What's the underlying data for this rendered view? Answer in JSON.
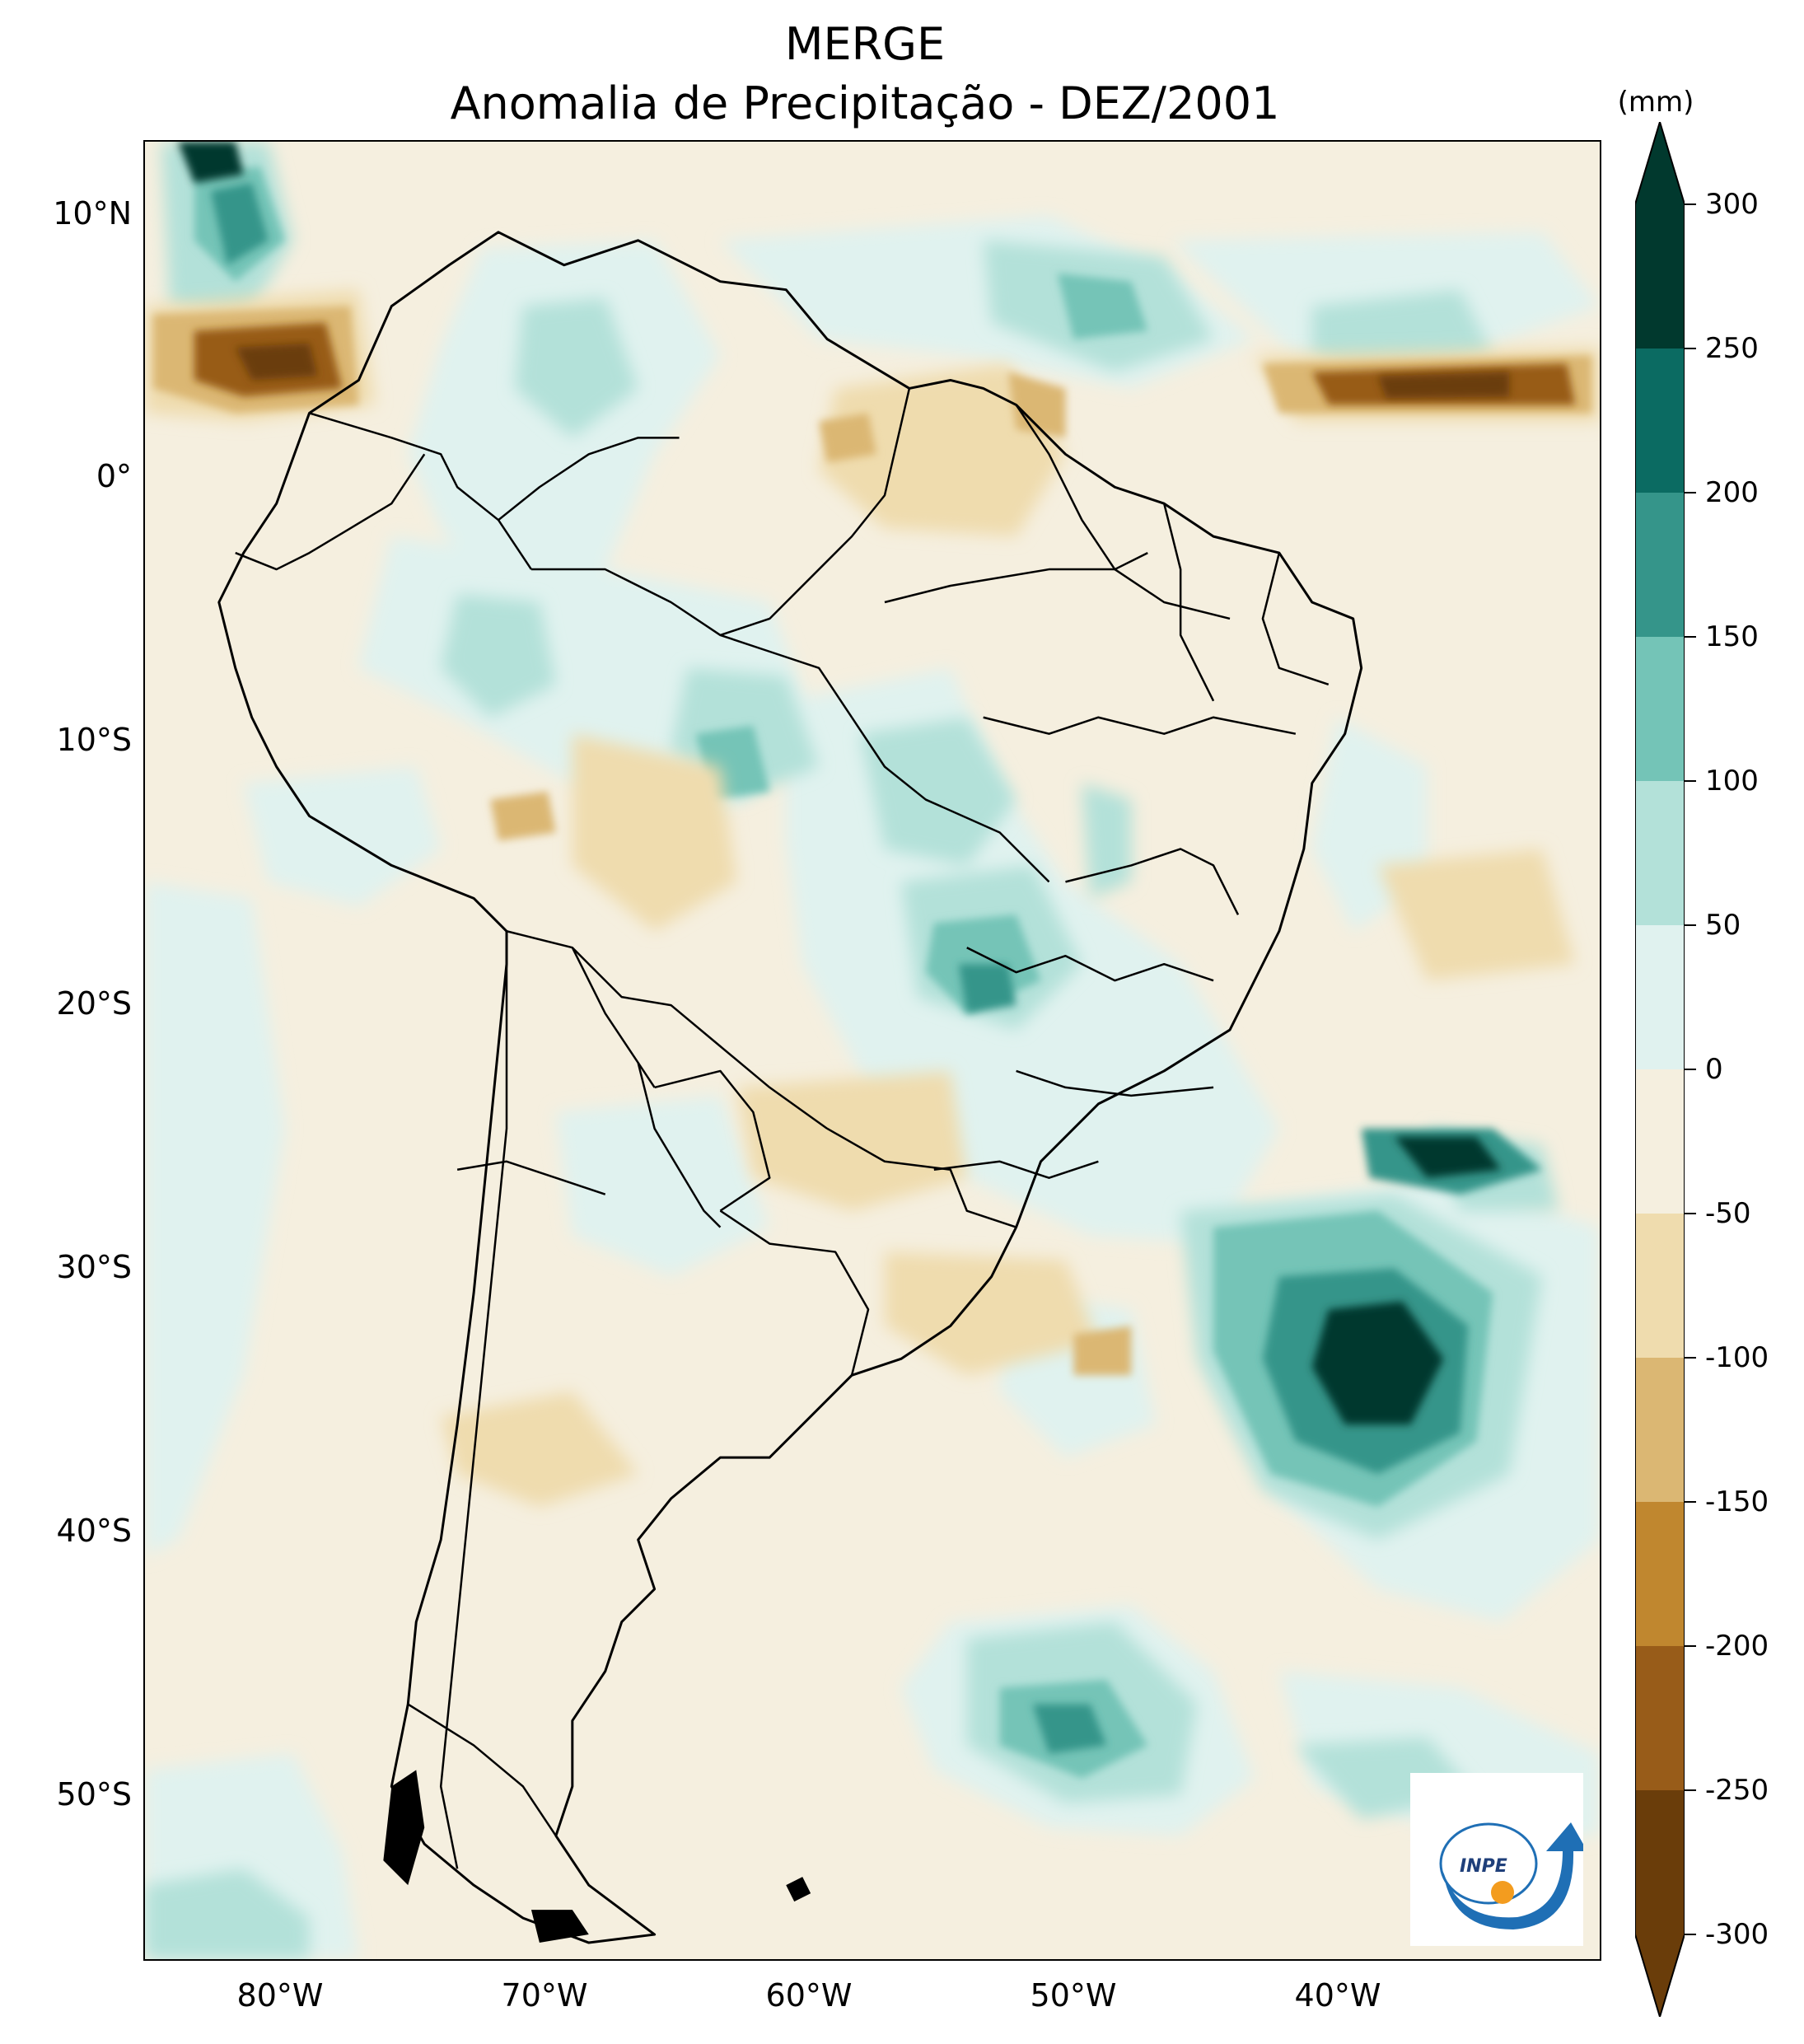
{
  "title": "MERGE",
  "subtitle": "Anomalia de Precipitação - DEZ/2001",
  "colorbar": {
    "unit": "(mm)",
    "ticks": [
      "300",
      "250",
      "200",
      "150",
      "100",
      "50",
      "0",
      "-50",
      "-100",
      "-150",
      "-200",
      "-250",
      "-300"
    ],
    "colors": [
      "#01392e",
      "#0b6b62",
      "#35958a",
      "#74c4b7",
      "#b3e1d9",
      "#e0f2ef",
      "#f5efdf",
      "#efdcae",
      "#dbb773",
      "#c0872f",
      "#985c19",
      "#6a3d0a"
    ],
    "extend": "both"
  },
  "axes": {
    "lat_labels": [
      "10°N",
      "0°",
      "10°S",
      "20°S",
      "30°S",
      "40°S",
      "50°S"
    ],
    "lon_labels": [
      "80°W",
      "70°W",
      "60°W",
      "50°W",
      "40°W"
    ]
  },
  "logo": {
    "text": "INPE"
  }
}
